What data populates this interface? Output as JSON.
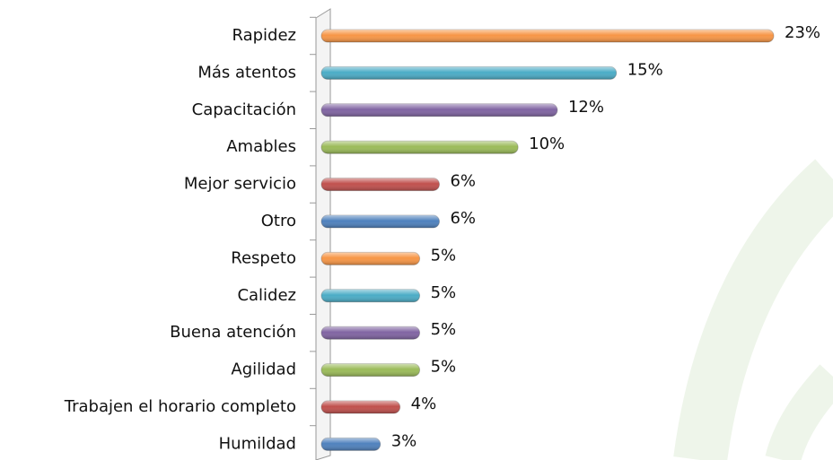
{
  "chart_data": {
    "type": "bar",
    "orientation": "horizontal",
    "categories": [
      "Rapidez",
      "Más atentos",
      "Capacitación",
      "Amables",
      "Mejor servicio",
      "Otro",
      "Respeto",
      "Calidez",
      "Buena atención",
      "Agilidad",
      "Trabajen el horario completo",
      "Humildad"
    ],
    "values": [
      23,
      15,
      12,
      10,
      6,
      6,
      5,
      5,
      5,
      5,
      4,
      3
    ],
    "value_labels": [
      "23%",
      "15%",
      "12%",
      "10%",
      "6%",
      "6%",
      "5%",
      "5%",
      "5%",
      "5%",
      "4%",
      "3%"
    ],
    "colors": [
      "#f79646",
      "#4bacc6",
      "#8064a2",
      "#9bbb59",
      "#c0504d",
      "#4f81bd",
      "#f79646",
      "#4bacc6",
      "#8064a2",
      "#9bbb59",
      "#c0504d",
      "#4f81bd"
    ],
    "xlim": [
      0,
      23
    ]
  }
}
